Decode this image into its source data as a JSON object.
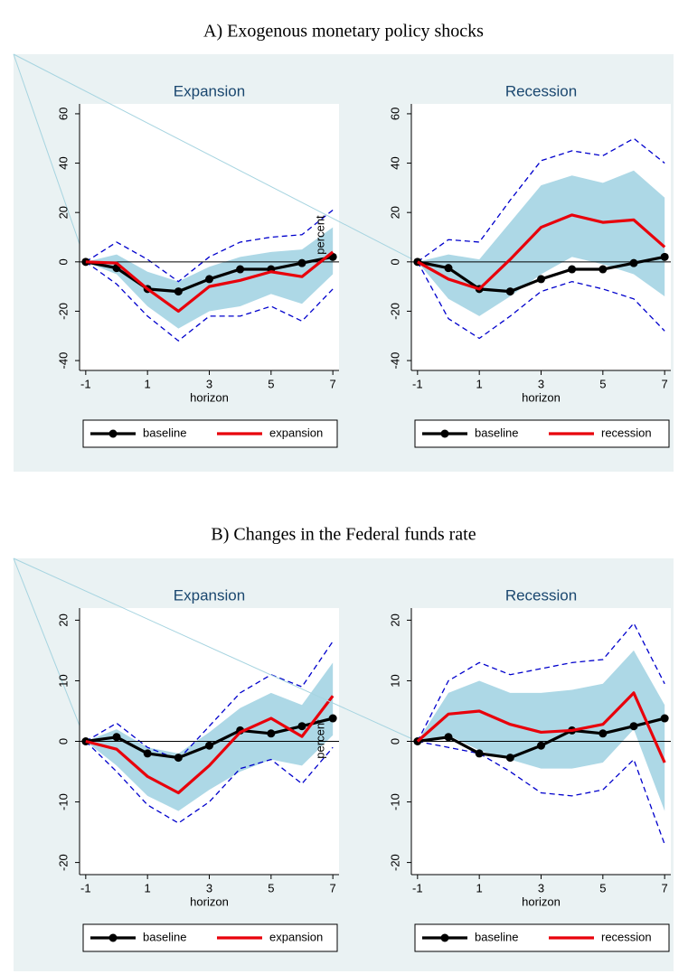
{
  "headings": [
    "A) Exogenous monetary policy shocks",
    "B) Changes in the Federal funds rate"
  ],
  "chart_data": [
    {
      "type": "line",
      "title": "Expansion",
      "xlabel": "horizon",
      "ylabel": "percent",
      "x": [
        -1,
        0,
        1,
        2,
        3,
        4,
        5,
        6,
        7
      ],
      "xlim": [
        -1.2,
        7.2
      ],
      "xticks": [
        -1,
        1,
        3,
        5,
        7
      ],
      "ylim": [
        -44,
        64
      ],
      "yticks": [
        -40,
        -20,
        0,
        20,
        40,
        60
      ],
      "series": [
        {
          "name": "baseline",
          "color": "#000000",
          "markers": true,
          "values": [
            0,
            -2.5,
            -11,
            -12,
            -7,
            -3,
            -3,
            -0.5,
            2
          ]
        },
        {
          "name": "expansion",
          "color": "#e8000b",
          "values": [
            0,
            -0.5,
            -11,
            -20,
            -10,
            -7.5,
            -4,
            -6,
            4
          ]
        }
      ],
      "band": {
        "color": "#add8e6",
        "upper": [
          0,
          3,
          -4,
          -8,
          -2,
          2,
          4,
          5,
          14
        ],
        "lower": [
          0,
          -5,
          -18,
          -27,
          -20,
          -18,
          -13,
          -17,
          -5
        ]
      },
      "dashed": {
        "color": "#0000cc",
        "upper": [
          0,
          8,
          1,
          -8,
          2,
          8,
          10,
          11,
          21
        ],
        "lower": [
          0,
          -9,
          -22,
          -32,
          -22,
          -22,
          -18,
          -24,
          -11
        ]
      }
    },
    {
      "type": "line",
      "title": "Recession",
      "xlabel": "horizon",
      "x": [
        -1,
        0,
        1,
        2,
        3,
        4,
        5,
        6,
        7
      ],
      "xlim": [
        -1.2,
        7.2
      ],
      "xticks": [
        -1,
        1,
        3,
        5,
        7
      ],
      "ylim": [
        -44,
        64
      ],
      "yticks": [
        -40,
        -20,
        0,
        20,
        40,
        60
      ],
      "series": [
        {
          "name": "baseline",
          "color": "#000000",
          "markers": true,
          "values": [
            0,
            -2.5,
            -11,
            -12,
            -7,
            -3,
            -3,
            -0.5,
            2
          ]
        },
        {
          "name": "recession",
          "color": "#e8000b",
          "values": [
            0,
            -7,
            -11,
            1,
            14,
            19,
            16,
            17,
            6
          ]
        }
      ],
      "band": {
        "color": "#add8e6",
        "upper": [
          0,
          3,
          1,
          16,
          31,
          35,
          32,
          37,
          26
        ],
        "lower": [
          0,
          -15,
          -22,
          -14,
          -5,
          2,
          -1,
          -5,
          -14
        ]
      },
      "dashed": {
        "color": "#0000cc",
        "upper": [
          0,
          9,
          8,
          25,
          41,
          45,
          43,
          50,
          40
        ],
        "lower": [
          0,
          -23,
          -31,
          -22,
          -12,
          -8,
          -11,
          -15,
          -28
        ]
      }
    },
    {
      "type": "line",
      "title": "Expansion",
      "xlabel": "horizon",
      "ylabel": "percent",
      "x": [
        -1,
        0,
        1,
        2,
        3,
        4,
        5,
        6,
        7
      ],
      "xlim": [
        -1.2,
        7.2
      ],
      "xticks": [
        -1,
        1,
        3,
        5,
        7
      ],
      "ylim": [
        -22,
        22
      ],
      "yticks": [
        -20,
        -10,
        0,
        10,
        20
      ],
      "series": [
        {
          "name": "baseline",
          "color": "#000000",
          "markers": true,
          "values": [
            0,
            0.7,
            -2,
            -2.7,
            -0.7,
            1.8,
            1.3,
            2.5,
            3.8
          ]
        },
        {
          "name": "expansion",
          "color": "#e8000b",
          "values": [
            0,
            -1.3,
            -5.8,
            -8.5,
            -4,
            1.5,
            3.8,
            0.8,
            7.5
          ]
        }
      ],
      "band": {
        "color": "#add8e6",
        "upper": [
          0,
          2,
          -1,
          -2,
          1.5,
          5.5,
          8,
          6,
          13
        ],
        "lower": [
          0,
          -4,
          -9,
          -11.5,
          -8,
          -5,
          -3,
          -4,
          1
        ]
      },
      "dashed": {
        "color": "#0000cc",
        "upper": [
          0,
          3,
          -1,
          -3,
          2.5,
          8,
          11,
          9,
          16.5
        ],
        "lower": [
          0,
          -5,
          -10.5,
          -13.5,
          -10,
          -4.5,
          -3,
          -7,
          -1
        ]
      }
    },
    {
      "type": "line",
      "title": "Recession",
      "xlabel": "horizon",
      "x": [
        -1,
        0,
        1,
        2,
        3,
        4,
        5,
        6,
        7
      ],
      "xlim": [
        -1.2,
        7.2
      ],
      "xticks": [
        -1,
        1,
        3,
        5,
        7
      ],
      "ylim": [
        -22,
        22
      ],
      "yticks": [
        -20,
        -10,
        0,
        10,
        20
      ],
      "series": [
        {
          "name": "baseline",
          "color": "#000000",
          "markers": true,
          "values": [
            0,
            0.7,
            -2,
            -2.7,
            -0.7,
            1.8,
            1.3,
            2.5,
            3.8
          ]
        },
        {
          "name": "recession",
          "color": "#e8000b",
          "values": [
            0,
            4.5,
            5,
            2.8,
            1.5,
            1.8,
            2.8,
            8,
            -3.5
          ]
        }
      ],
      "band": {
        "color": "#add8e6",
        "upper": [
          0,
          8,
          10,
          8,
          8,
          8.5,
          9.5,
          15,
          6
        ],
        "lower": [
          0,
          1,
          -1.5,
          -3,
          -4.5,
          -4.5,
          -3.5,
          2,
          -11.5
        ]
      },
      "dashed": {
        "color": "#0000cc",
        "upper": [
          0,
          10,
          13,
          11,
          12,
          13,
          13.5,
          19.5,
          9.5
        ],
        "lower": [
          0,
          -1,
          -2,
          -5,
          -8.5,
          -9,
          -8,
          -3,
          -17
        ]
      }
    }
  ]
}
